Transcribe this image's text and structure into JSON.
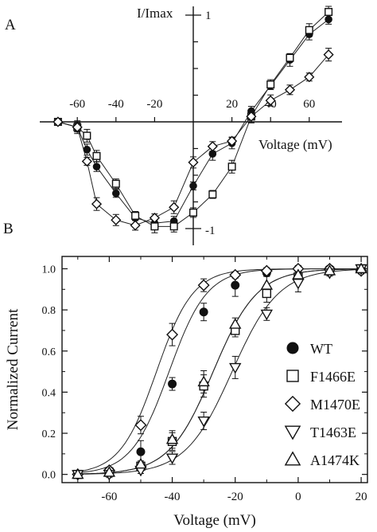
{
  "chart_data": [
    {
      "panel": "A",
      "type": "line",
      "ylabel": "I/Imax",
      "xlabel": "Voltage (mV)",
      "xlim": [
        -75,
        75
      ],
      "ylim": [
        -1,
        1
      ],
      "x_ticks": [
        -60,
        -40,
        -20,
        20,
        40,
        60
      ],
      "y_tick_labels": [
        "1",
        "-1"
      ],
      "grid": false,
      "series": [
        {
          "marker": "circle-filled",
          "x": [
            -70,
            -60,
            -55,
            -50,
            -40,
            -30,
            -20,
            -10,
            0,
            10,
            20,
            30,
            40,
            50,
            60,
            70
          ],
          "y": [
            0,
            -0.05,
            -0.26,
            -0.42,
            -0.67,
            -0.9,
            -0.95,
            -0.93,
            -0.6,
            -0.3,
            -0.2,
            0.1,
            0.34,
            0.58,
            0.82,
            0.96
          ]
        },
        {
          "marker": "square-open",
          "x": [
            -70,
            -60,
            -55,
            -50,
            -40,
            -30,
            -20,
            -10,
            0,
            10,
            20,
            30,
            40,
            50,
            60,
            70
          ],
          "y": [
            0,
            -0.05,
            -0.13,
            -0.32,
            -0.58,
            -0.88,
            -0.98,
            -0.98,
            -0.85,
            -0.68,
            -0.42,
            0.05,
            0.35,
            0.6,
            0.86,
            1.03
          ]
        },
        {
          "marker": "diamond-open",
          "x": [
            -70,
            -60,
            -55,
            -50,
            -40,
            -30,
            -20,
            -10,
            0,
            10,
            20,
            30,
            40,
            50,
            60,
            70
          ],
          "y": [
            0,
            -0.05,
            -0.37,
            -0.77,
            -0.92,
            -0.97,
            -0.9,
            -0.8,
            -0.38,
            -0.23,
            -0.18,
            0.05,
            0.2,
            0.3,
            0.42,
            0.63
          ]
        }
      ]
    },
    {
      "panel": "B",
      "type": "scatter",
      "ylabel": "Normalized Current",
      "xlabel": "Voltage (mV)",
      "xlim": [
        -75,
        22
      ],
      "ylim": [
        -0.04,
        1.06
      ],
      "x_ticks": [
        -60,
        -40,
        -20,
        0,
        20
      ],
      "y_ticks": [
        0.0,
        0.2,
        0.4,
        0.6,
        0.8,
        1.0
      ],
      "x_tick_labels": [
        "-60",
        "-40",
        "-20",
        "0",
        "20"
      ],
      "y_tick_labels": [
        "0.0",
        "0.2",
        "0.4",
        "0.6",
        "0.8",
        "1.0"
      ],
      "legend_position": "right",
      "grid": false,
      "series": [
        {
          "name": "WT",
          "marker": "circle-filled",
          "x": [
            -70,
            -60,
            -50,
            -40,
            -30,
            -20,
            -10,
            0,
            10,
            20
          ],
          "y": [
            0.0,
            0.02,
            0.11,
            0.44,
            0.79,
            0.92,
            0.98,
            1.0,
            1.0,
            1.0
          ]
        },
        {
          "name": "F1466E",
          "marker": "square-open",
          "x": [
            -70,
            -60,
            -50,
            -40,
            -30,
            -20,
            -10,
            0,
            10,
            20
          ],
          "y": [
            0.0,
            0.01,
            0.04,
            0.16,
            0.43,
            0.7,
            0.88,
            0.96,
            0.99,
            1.0
          ]
        },
        {
          "name": "M1470E",
          "marker": "diamond-open",
          "x": [
            -70,
            -60,
            -50,
            -40,
            -30,
            -20,
            -10,
            0,
            10,
            20
          ],
          "y": [
            0.0,
            0.02,
            0.24,
            0.68,
            0.92,
            0.97,
            0.99,
            1.0,
            1.0,
            0.99
          ]
        },
        {
          "name": "T1463E",
          "marker": "triangle-down-open",
          "x": [
            -70,
            -60,
            -50,
            -40,
            -30,
            -20,
            -10,
            0,
            10,
            20
          ],
          "y": [
            0.0,
            0.0,
            0.02,
            0.08,
            0.26,
            0.52,
            0.78,
            0.93,
            0.98,
            1.0
          ]
        },
        {
          "name": "A1474K",
          "marker": "triangle-up-open",
          "x": [
            -70,
            -60,
            -50,
            -40,
            -30,
            -20,
            -10,
            0,
            10,
            20
          ],
          "y": [
            0.0,
            0.01,
            0.05,
            0.17,
            0.45,
            0.73,
            0.92,
            0.97,
            0.99,
            1.0
          ]
        }
      ]
    }
  ]
}
